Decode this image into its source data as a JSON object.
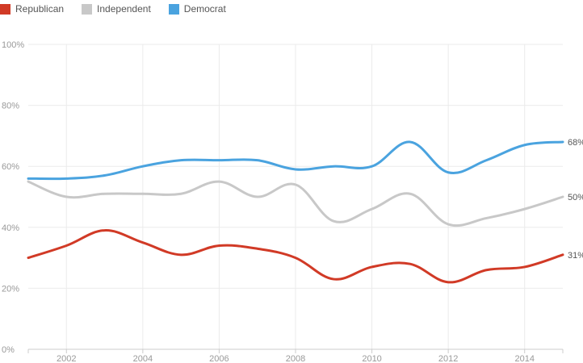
{
  "chart_data": {
    "type": "line",
    "title": "",
    "xlabel": "",
    "ylabel": "",
    "x": [
      2001,
      2002,
      2003,
      2004,
      2005,
      2006,
      2007,
      2008,
      2009,
      2010,
      2011,
      2012,
      2013,
      2014,
      2015
    ],
    "x_ticks": [
      "2002",
      "2004",
      "2006",
      "2008",
      "2010",
      "2012",
      "2014"
    ],
    "y_ticks": [
      "0%",
      "20%",
      "40%",
      "60%",
      "80%",
      "100%"
    ],
    "ylim": [
      0,
      100
    ],
    "xlim": [
      2001,
      2015
    ],
    "grid": true,
    "legend_position": "top-left",
    "series": [
      {
        "name": "Republican",
        "color": "#d13a26",
        "values": [
          30,
          34,
          39,
          35,
          31,
          34,
          33,
          30,
          23,
          27,
          28,
          22,
          26,
          27,
          31
        ],
        "end_label": "31%"
      },
      {
        "name": "Independent",
        "color": "#c8c8c8",
        "values": [
          55,
          50,
          51,
          51,
          51,
          55,
          50,
          54,
          42,
          46,
          51,
          41,
          43,
          46,
          50
        ],
        "end_label": "50%"
      },
      {
        "name": "Democrat",
        "color": "#4aa3df",
        "values": [
          56,
          56,
          57,
          60,
          62,
          62,
          62,
          59,
          60,
          60,
          68,
          58,
          62,
          67,
          68
        ],
        "end_label": "68%"
      }
    ]
  }
}
